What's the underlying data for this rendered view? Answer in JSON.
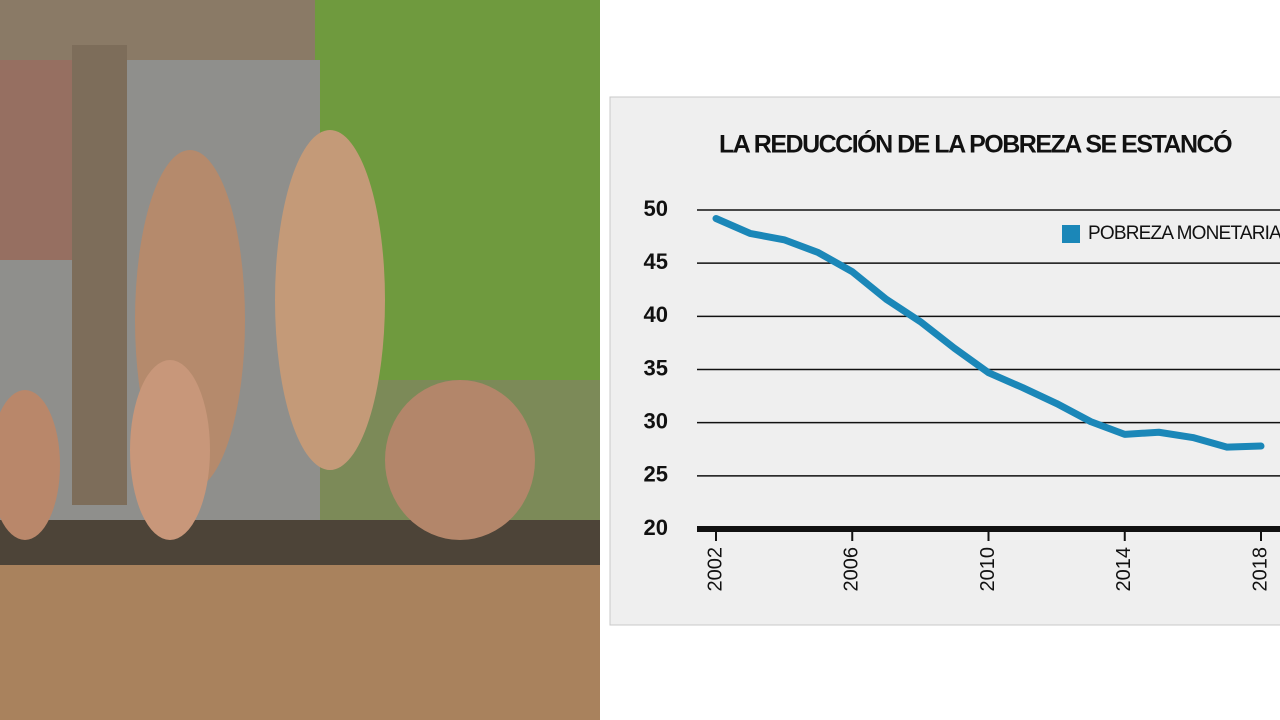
{
  "chart_data": {
    "type": "line",
    "title": "LA REDUCCIÓN DE LA POBREZA SE ESTANCÓ",
    "x": [
      2002,
      2003,
      2004,
      2005,
      2006,
      2007,
      2008,
      2009,
      2010,
      2011,
      2012,
      2013,
      2014,
      2015,
      2016,
      2017,
      2018
    ],
    "series": [
      {
        "name": "POBREZA MONETARIA",
        "color": "#1b87b8",
        "values": [
          49.2,
          47.8,
          47.2,
          46,
          44.2,
          41.6,
          39.5,
          37,
          34.7,
          33.3,
          31.8,
          30.1,
          28.9,
          29.1,
          28.6,
          27.7,
          27.8
        ]
      }
    ],
    "xlim": [
      2002,
      2018
    ],
    "xticks": [
      2002,
      2006,
      2010,
      2014,
      2018
    ],
    "ylim": [
      20,
      50
    ],
    "yticks": [
      20,
      25,
      30,
      35,
      40,
      45,
      50
    ],
    "grid": true,
    "legend": "top-right"
  }
}
